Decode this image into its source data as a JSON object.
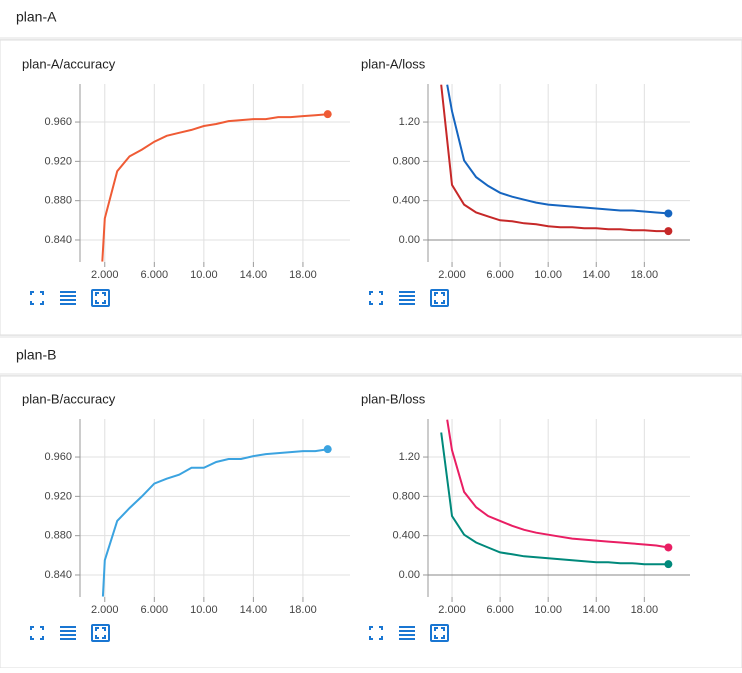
{
  "sections": [
    {
      "title": "plan-A"
    },
    {
      "title": "plan-B"
    }
  ],
  "chart_data": [
    {
      "type": "line",
      "title": "plan-A/accuracy",
      "grid": true,
      "xlim": [
        0,
        21.8
      ],
      "xticks": [
        {
          "value": 2,
          "label": "2.000"
        },
        {
          "value": 6,
          "label": "6.000"
        },
        {
          "value": 10,
          "label": "10.00"
        },
        {
          "value": 14,
          "label": "14.00"
        },
        {
          "value": 18,
          "label": "18.00"
        }
      ],
      "ylim": [
        0.8176,
        0.9987
      ],
      "yticks": [
        {
          "value": 0.84,
          "label": "0.840"
        },
        {
          "value": 0.88,
          "label": "0.880"
        },
        {
          "value": 0.92,
          "label": "0.920"
        },
        {
          "value": 0.96,
          "label": "0.960"
        }
      ],
      "series": [
        {
          "color": "#ef5b35",
          "x": [
            1.8,
            2,
            3,
            4,
            5,
            6,
            7,
            8,
            9,
            10,
            11,
            12,
            13,
            14,
            15,
            16,
            17,
            18,
            19,
            20
          ],
          "values": [
            0.818,
            0.862,
            0.91,
            0.925,
            0.932,
            0.94,
            0.946,
            0.949,
            0.952,
            0.956,
            0.958,
            0.961,
            0.962,
            0.963,
            0.963,
            0.965,
            0.965,
            0.966,
            0.967,
            0.968
          ]
        }
      ]
    },
    {
      "type": "line",
      "title": "plan-A/loss",
      "grid": true,
      "xlim": [
        0,
        21.8
      ],
      "xticks": [
        {
          "value": 2,
          "label": "2.000"
        },
        {
          "value": 6,
          "label": "6.000"
        },
        {
          "value": 10,
          "label": "10.00"
        },
        {
          "value": 14,
          "label": "14.00"
        },
        {
          "value": 18,
          "label": "18.00"
        }
      ],
      "ylim": [
        -0.224,
        1.587
      ],
      "yticks": [
        {
          "value": 0,
          "label": "0.00"
        },
        {
          "value": 0.4,
          "label": "0.400"
        },
        {
          "value": 0.8,
          "label": "0.800"
        },
        {
          "value": 1.2,
          "label": "1.20"
        }
      ],
      "series": [
        {
          "color": "#1565c0",
          "x": [
            1.6,
            2,
            3,
            4,
            5,
            6,
            7,
            8,
            9,
            10,
            11,
            12,
            13,
            14,
            15,
            16,
            17,
            18,
            19,
            20
          ],
          "values": [
            1.58,
            1.31,
            0.81,
            0.64,
            0.55,
            0.48,
            0.44,
            0.41,
            0.38,
            0.36,
            0.35,
            0.34,
            0.33,
            0.32,
            0.31,
            0.3,
            0.3,
            0.29,
            0.28,
            0.27
          ]
        },
        {
          "color": "#c62828",
          "x": [
            1.1,
            2,
            3,
            4,
            5,
            6,
            7,
            8,
            9,
            10,
            11,
            12,
            13,
            14,
            15,
            16,
            17,
            18,
            19,
            20
          ],
          "values": [
            1.58,
            0.56,
            0.36,
            0.28,
            0.24,
            0.2,
            0.19,
            0.17,
            0.16,
            0.14,
            0.13,
            0.13,
            0.12,
            0.12,
            0.11,
            0.11,
            0.1,
            0.1,
            0.09,
            0.09
          ]
        }
      ]
    },
    {
      "type": "line",
      "title": "plan-B/accuracy",
      "grid": true,
      "xlim": [
        0,
        21.8
      ],
      "xticks": [
        {
          "value": 2,
          "label": "2.000"
        },
        {
          "value": 6,
          "label": "6.000"
        },
        {
          "value": 10,
          "label": "10.00"
        },
        {
          "value": 14,
          "label": "14.00"
        },
        {
          "value": 18,
          "label": "18.00"
        }
      ],
      "ylim": [
        0.8176,
        0.9987
      ],
      "yticks": [
        {
          "value": 0.84,
          "label": "0.840"
        },
        {
          "value": 0.88,
          "label": "0.880"
        },
        {
          "value": 0.92,
          "label": "0.920"
        },
        {
          "value": 0.96,
          "label": "0.960"
        }
      ],
      "series": [
        {
          "color": "#3ba3e0",
          "x": [
            1.85,
            2,
            3,
            4,
            5,
            6,
            7,
            8,
            9,
            10,
            11,
            12,
            13,
            14,
            15,
            16,
            17,
            18,
            19,
            20
          ],
          "values": [
            0.818,
            0.855,
            0.895,
            0.908,
            0.92,
            0.933,
            0.938,
            0.942,
            0.949,
            0.949,
            0.955,
            0.958,
            0.958,
            0.961,
            0.963,
            0.964,
            0.965,
            0.966,
            0.966,
            0.968
          ]
        }
      ]
    },
    {
      "type": "line",
      "title": "plan-B/loss",
      "grid": true,
      "xlim": [
        0,
        21.8
      ],
      "xticks": [
        {
          "value": 2,
          "label": "2.000"
        },
        {
          "value": 6,
          "label": "6.000"
        },
        {
          "value": 10,
          "label": "10.00"
        },
        {
          "value": 14,
          "label": "14.00"
        },
        {
          "value": 18,
          "label": "18.00"
        }
      ],
      "ylim": [
        -0.224,
        1.587
      ],
      "yticks": [
        {
          "value": 0,
          "label": "0.00"
        },
        {
          "value": 0.4,
          "label": "0.400"
        },
        {
          "value": 0.8,
          "label": "0.800"
        },
        {
          "value": 1.2,
          "label": "1.20"
        }
      ],
      "series": [
        {
          "color": "#e91e63",
          "x": [
            1.6,
            2,
            3,
            4,
            5,
            6,
            7,
            8,
            9,
            10,
            11,
            12,
            13,
            14,
            15,
            16,
            17,
            18,
            19,
            20
          ],
          "values": [
            1.58,
            1.27,
            0.845,
            0.69,
            0.6,
            0.55,
            0.5,
            0.46,
            0.43,
            0.41,
            0.39,
            0.37,
            0.36,
            0.35,
            0.34,
            0.33,
            0.32,
            0.31,
            0.3,
            0.28
          ]
        },
        {
          "color": "#00897b",
          "x": [
            1.1,
            2,
            3,
            4,
            5,
            6,
            7,
            8,
            9,
            10,
            11,
            12,
            13,
            14,
            15,
            16,
            17,
            18,
            19,
            20
          ],
          "values": [
            1.45,
            0.6,
            0.41,
            0.33,
            0.28,
            0.23,
            0.21,
            0.19,
            0.18,
            0.17,
            0.16,
            0.15,
            0.14,
            0.13,
            0.13,
            0.12,
            0.12,
            0.11,
            0.11,
            0.11
          ]
        }
      ]
    }
  ]
}
